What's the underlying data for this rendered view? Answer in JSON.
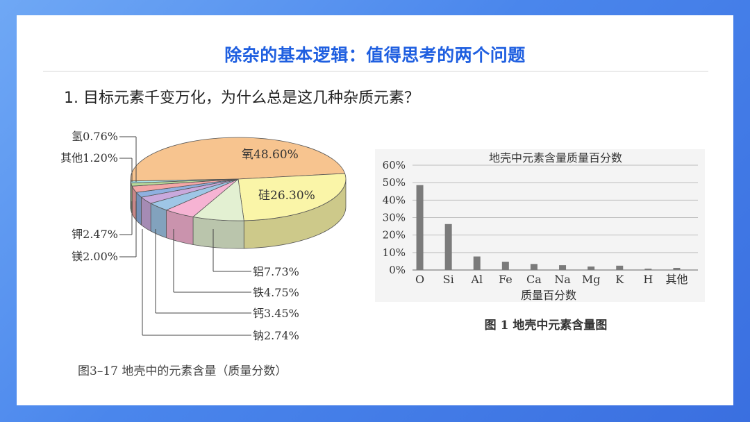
{
  "header": {
    "title": "除杂的基本逻辑：值得思考的两个问题",
    "question": "1. 目标元素千变万化，为什么总是这几种杂质元素？"
  },
  "chart_data": [
    {
      "type": "pie",
      "caption": "图3–17  地壳中的元素含量（质量分数）",
      "slices": [
        {
          "name": "氧",
          "value": 48.6,
          "label": "氧48.60%",
          "color": "#f7c48f"
        },
        {
          "name": "硅",
          "value": 26.3,
          "label": "硅26.30%",
          "color": "#faf5a8"
        },
        {
          "name": "铝",
          "value": 7.73,
          "label": "铝7.73%",
          "color": "#e3f0d2"
        },
        {
          "name": "铁",
          "value": 4.75,
          "label": "铁4.75%",
          "color": "#f6b3d3"
        },
        {
          "name": "钙",
          "value": 3.45,
          "label": "钙3.45%",
          "color": "#9ec6e6"
        },
        {
          "name": "钠",
          "value": 2.74,
          "label": "钠2.74%",
          "color": "#c9a9dc"
        },
        {
          "name": "镁",
          "value": 2.0,
          "label": "镁2.00%",
          "color": "#8fb0e0"
        },
        {
          "name": "钾",
          "value": 2.47,
          "label": "钾2.47%",
          "color": "#f4a6a6"
        },
        {
          "name": "其他",
          "value": 1.2,
          "label": "其他1.20%",
          "color": "#b7d99a"
        },
        {
          "name": "氢",
          "value": 0.76,
          "label": "氢0.76%",
          "color": "#a6e0e6"
        }
      ]
    },
    {
      "type": "bar",
      "title": "地壳中元素含量质量百分数",
      "xlabel": "质量百分数",
      "caption": "图 1   地壳中元素含量图",
      "categories": [
        "O",
        "Si",
        "Al",
        "Fe",
        "Ca",
        "Na",
        "Mg",
        "K",
        "H",
        "其他"
      ],
      "values": [
        48.6,
        26.3,
        7.73,
        4.75,
        3.45,
        2.74,
        2.0,
        2.47,
        0.76,
        1.2
      ],
      "ylim": [
        0,
        60
      ],
      "yticks": [
        "0%",
        "10%",
        "20%",
        "30%",
        "40%",
        "50%",
        "60%"
      ],
      "grid": true,
      "bar_color": "#7b7b7b"
    }
  ]
}
